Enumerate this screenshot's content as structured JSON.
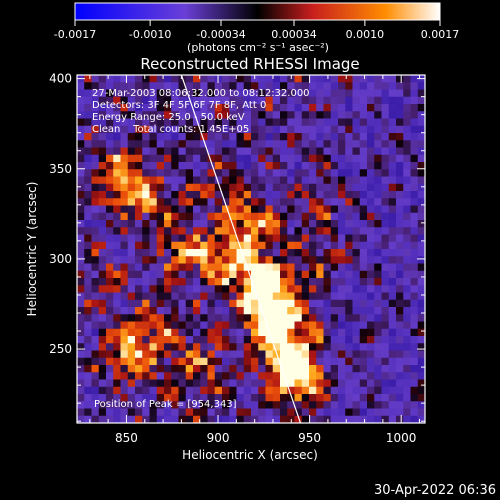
{
  "colorbar": {
    "ticks": [
      "-0.0017",
      "-0.0010",
      "-0.00034",
      "0.00034",
      "0.0010",
      "0.0017"
    ],
    "unit_label": "(photons cm⁻² s⁻¹ asec⁻²)",
    "range": [
      -0.0017,
      0.0017
    ],
    "colors": [
      "#0000ff",
      "#7a4bd6",
      "#000000",
      "#c81e1e",
      "#ff7a00",
      "#ffffff"
    ]
  },
  "plot": {
    "annotations": [
      "27-Mar-2003 08:06:32.000 to 08:12:32.000",
      "Detectors: 3F 4F 5F 6F 7F 8F, Att 0",
      "Energy Range: 25.0 - 50.0 keV",
      "Clean    Total counts: 1.45E+05"
    ],
    "peak_text": "Position of Peak = [954,343]"
  },
  "footer": {
    "timestamp": "30-Apr-2022 06:36"
  },
  "chart_data": {
    "type": "heatmap",
    "title": "Reconstructed RHESSI Image",
    "xlabel": "Heliocentric X (arcsec)",
    "ylabel": "Heliocentric Y (arcsec)",
    "xlim": [
      823,
      1013
    ],
    "ylim": [
      209,
      402
    ],
    "x_ticks": [
      850,
      900,
      950,
      1000
    ],
    "y_ticks": [
      250,
      300,
      350,
      400
    ],
    "x_tick_labels": [
      "850",
      "900",
      "950",
      "1000"
    ],
    "y_tick_labels": [
      "250",
      "300",
      "350",
      "400"
    ],
    "limb_line": [
      [
        880,
        402
      ],
      [
        945,
        209
      ]
    ],
    "blobs": [
      {
        "x": 850,
        "y": 345,
        "amp": 1.1
      },
      {
        "x": 862,
        "y": 330,
        "amp": 0.6
      },
      {
        "x": 880,
        "y": 305,
        "amp": 0.8
      },
      {
        "x": 905,
        "y": 300,
        "amp": 0.9
      },
      {
        "x": 918,
        "y": 318,
        "amp": 0.9
      },
      {
        "x": 925,
        "y": 285,
        "amp": 1.5
      },
      {
        "x": 932,
        "y": 265,
        "amp": 1.6
      },
      {
        "x": 940,
        "y": 245,
        "amp": 1.3
      },
      {
        "x": 945,
        "y": 230,
        "amp": 0.9
      },
      {
        "x": 852,
        "y": 248,
        "amp": 1.0
      },
      {
        "x": 870,
        "y": 262,
        "amp": 0.6
      },
      {
        "x": 890,
        "y": 240,
        "amp": 0.7
      },
      {
        "x": 900,
        "y": 340,
        "amp": 0.5
      },
      {
        "x": 840,
        "y": 290,
        "amp": 0.4
      },
      {
        "x": 960,
        "y": 330,
        "amp": 0.4
      },
      {
        "x": 955,
        "y": 300,
        "amp": 0.5
      }
    ]
  }
}
